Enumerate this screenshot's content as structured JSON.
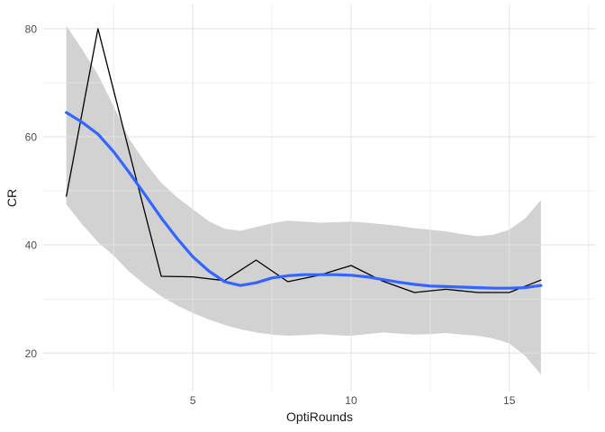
{
  "chart_data": {
    "type": "line",
    "title": "",
    "xlabel": "OptiRounds",
    "ylabel": "CR",
    "xlim": [
      0.27,
      17.74
    ],
    "ylim": [
      12.97,
      84.47
    ],
    "x_major_ticks": [
      5,
      10,
      15
    ],
    "x_minor_gridlines": [
      2.5,
      7.5,
      12.5,
      17.5
    ],
    "y_major_ticks": [
      20,
      40,
      60,
      80
    ],
    "y_minor_gridlines": [
      30,
      50,
      70
    ],
    "grid": true,
    "legend": "none",
    "series": [
      {
        "name": "confidence-band",
        "type": "area",
        "fill": "#D2D2D2",
        "x": [
          1,
          1.5,
          2,
          2.5,
          3,
          3.5,
          4,
          4.5,
          5,
          5.5,
          6,
          6.5,
          7,
          7.5,
          8,
          8.5,
          9,
          9.5,
          10,
          10.5,
          11,
          11.5,
          12,
          12.5,
          13,
          13.5,
          14,
          14.5,
          15,
          15.5,
          16
        ],
        "y_upper": [
          80.5,
          76.2,
          71.5,
          65.6,
          59.5,
          55.2,
          51.5,
          48.8,
          46.6,
          44.4,
          43.0,
          42.6,
          43.3,
          44.0,
          44.5,
          44.3,
          44.1,
          44.2,
          44.3,
          44.1,
          43.8,
          43.5,
          43.1,
          42.8,
          42.5,
          42.0,
          41.6,
          41.9,
          42.8,
          44.9,
          48.3
        ],
        "y_lower": [
          47.5,
          43.8,
          40.5,
          38.0,
          35.0,
          32.6,
          30.5,
          28.8,
          27.4,
          26.2,
          25.2,
          24.4,
          23.8,
          23.4,
          23.2,
          23.3,
          23.5,
          23.3,
          23.2,
          23.5,
          23.8,
          23.6,
          23.4,
          23.5,
          23.7,
          23.4,
          23.2,
          22.7,
          21.8,
          19.5,
          16.0
        ]
      },
      {
        "name": "cr-raw-line",
        "type": "line",
        "color": "#000000",
        "stroke_width": 1.3,
        "x": [
          1,
          2,
          3,
          4,
          5,
          6,
          7,
          8,
          9,
          10,
          11,
          12,
          13,
          14,
          15,
          16
        ],
        "y": [
          49,
          80,
          57,
          34.2,
          34.1,
          33.4,
          37.2,
          33.2,
          34.4,
          36.2,
          33.3,
          31.2,
          31.8,
          31.2,
          31.2,
          33.5
        ]
      },
      {
        "name": "loess-smooth-line",
        "type": "line",
        "color": "#3366FF",
        "stroke_width": 3.2,
        "x": [
          1,
          1.5,
          2,
          2.5,
          3,
          3.5,
          4,
          4.5,
          5,
          5.5,
          6,
          6.5,
          7,
          7.5,
          8,
          8.5,
          9,
          9.5,
          10,
          10.5,
          11,
          11.5,
          12,
          12.5,
          13,
          13.5,
          14,
          14.5,
          15,
          15.5,
          16
        ],
        "y": [
          64.5,
          62.7,
          60.5,
          57.2,
          53.3,
          49.2,
          45.0,
          41.2,
          37.8,
          35.2,
          33.2,
          32.5,
          33.0,
          33.9,
          34.3,
          34.5,
          34.5,
          34.5,
          34.4,
          34.1,
          33.6,
          33.1,
          32.7,
          32.4,
          32.3,
          32.2,
          32.1,
          32.0,
          32.0,
          32.1,
          32.5
        ]
      }
    ],
    "colors": {
      "panel_background": "#FFFFFF",
      "grid_major": "rgba(225,225,225,0.8)",
      "grid_minor": "rgba(233,233,233,0.7)",
      "axis_text": "#4D4D4D",
      "axis_title": "#1A1A1A",
      "ribbon": "#D2D2D2",
      "smooth_line": "#3366FF",
      "raw_line": "#000000"
    }
  }
}
